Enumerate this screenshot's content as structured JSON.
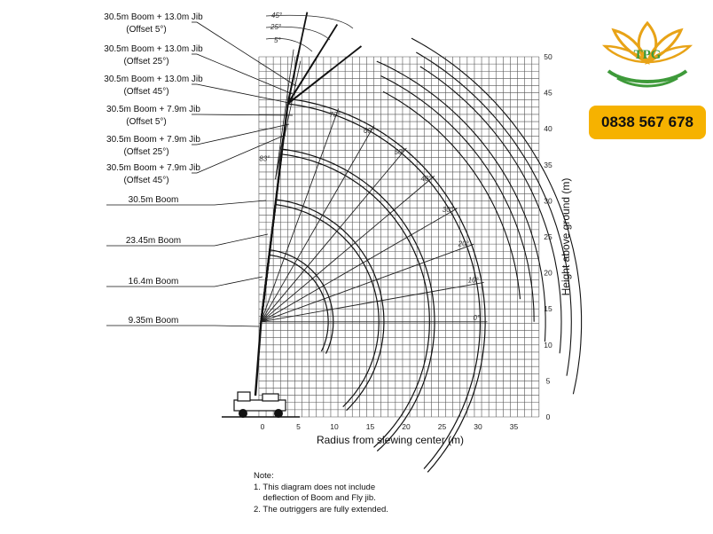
{
  "brand": {
    "logo_text": "TPG",
    "phone": "0838 567 678",
    "gold": "#E8A317",
    "green": "#3E9A3A",
    "phone_bg": "#F6B200"
  },
  "chart_data": {
    "type": "diagram",
    "xlabel": "Radius from slewing center (m)",
    "ylabel": "Height above ground (m)",
    "xlim": [
      0,
      38
    ],
    "ylim": [
      0,
      50
    ],
    "x_ticks": [
      "0",
      "5",
      "10",
      "15",
      "20",
      "25",
      "30",
      "35"
    ],
    "y_ticks": [
      "0",
      "5",
      "10",
      "15",
      "20",
      "25",
      "30",
      "35",
      "40",
      "45",
      "50"
    ],
    "boom_angle_labels": [
      "0°",
      "10°",
      "20°",
      "30°",
      "40°",
      "50°",
      "60°",
      "70°",
      "83°"
    ],
    "offset_angle_labels": [
      "5°",
      "25°",
      "45°"
    ],
    "configurations": [
      {
        "label": "30.5m Boom + 13.0m Jib",
        "offset": "(Offset 5°)"
      },
      {
        "label": "30.5m Boom + 13.0m Jib",
        "offset": "(Offset 25°)"
      },
      {
        "label": "30.5m Boom + 13.0m Jib",
        "offset": "(Offset 45°)"
      },
      {
        "label": "30.5m Boom + 7.9m Jib",
        "offset": "(Offset 5°)"
      },
      {
        "label": "30.5m Boom + 7.9m Jib",
        "offset": "(Offset 25°)"
      },
      {
        "label": "30.5m Boom + 7.9m Jib",
        "offset": "(Offset 45°)"
      },
      {
        "label": "30.5m Boom",
        "offset": ""
      },
      {
        "label": "23.45m Boom",
        "offset": ""
      },
      {
        "label": "16.4m Boom",
        "offset": ""
      },
      {
        "label": "9.35m Boom",
        "offset": ""
      }
    ],
    "boom_arcs_m": [
      9.35,
      16.4,
      23.45,
      30.5
    ]
  },
  "notes": {
    "title": "Note:",
    "line1": "1. This diagram does not include",
    "line2": "    deflection of Boom and Fly jib.",
    "line3": "2. The outriggers are fully extended."
  }
}
